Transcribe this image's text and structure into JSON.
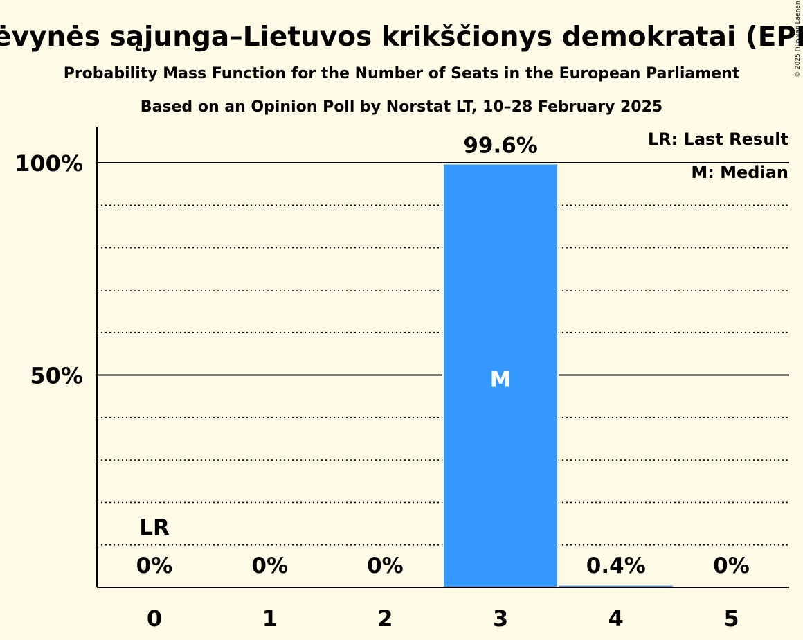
{
  "chart_data": {
    "type": "bar",
    "title": "Tėvynės sąjunga–Lietuvos krikščionys demokratai (EPP)",
    "subtitle_1": "Probability Mass Function for the Number of Seats in the European Parliament",
    "subtitle_2": "Based on an Opinion Poll by Norstat LT, 10–28 February 2025",
    "copyright": "© 2025 Filip van Laenen",
    "categories": [
      "0",
      "1",
      "2",
      "3",
      "4",
      "5"
    ],
    "values": [
      0,
      0,
      0,
      99.6,
      0.4,
      0
    ],
    "value_labels": [
      "0%",
      "0%",
      "0%",
      "99.6%",
      "0.4%",
      "0%"
    ],
    "ylim": [
      0,
      100
    ],
    "yticks": [
      {
        "value": 50,
        "label": "50%"
      },
      {
        "value": 100,
        "label": "100%"
      }
    ],
    "minor_gridlines": [
      10,
      20,
      30,
      40,
      60,
      70,
      80,
      90
    ],
    "last_result": {
      "category": "0",
      "marker": "LR"
    },
    "median": {
      "category": "3",
      "marker": "M"
    },
    "legend": {
      "placement": "top-right",
      "entries": [
        "LR: Last Result",
        "M: Median"
      ]
    },
    "bar_color": "#3399ff",
    "small_bar_color": "#3399ff",
    "grid": true
  }
}
